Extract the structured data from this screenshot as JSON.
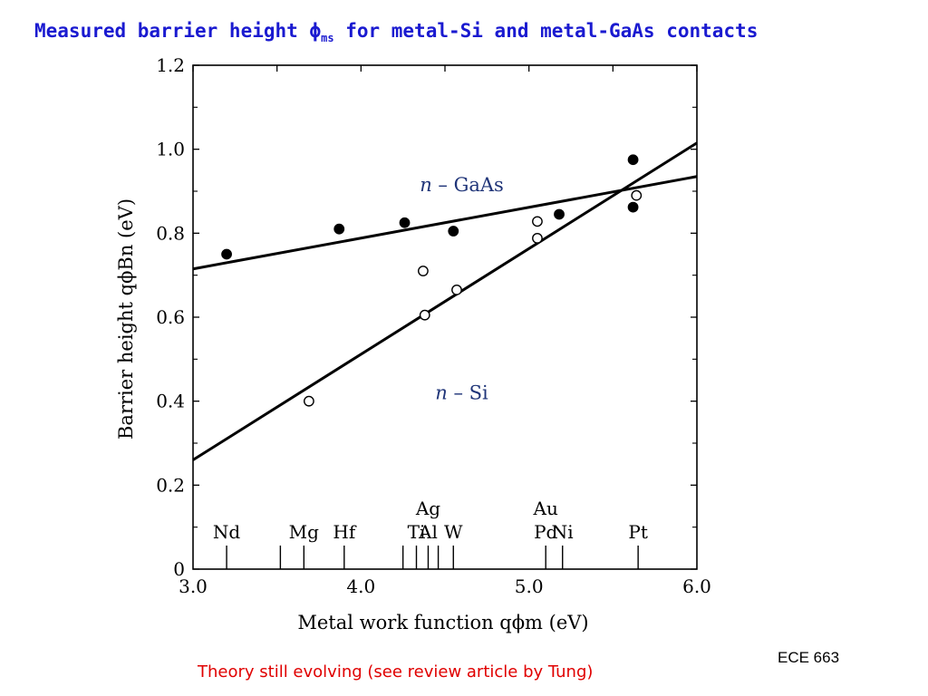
{
  "slide": {
    "title_main": "Measured barrier height ",
    "title_symbol": "ϕ",
    "title_sub": "ms",
    "title_rest": " for metal-Si and metal-GaAs contacts",
    "course": "ECE 663",
    "footer": "Theory still evolving (see review article by Tung)",
    "title_color": "#1a1ad0",
    "footer_color": "#e00000"
  },
  "chart_data": {
    "type": "scatter",
    "title": "",
    "xlabel": "Metal work function qϕm (eV)",
    "ylabel": "Barrier height qϕBn (eV)",
    "xlim": [
      3.0,
      6.0
    ],
    "ylim": [
      0,
      1.2
    ],
    "xticks": [
      3.0,
      3.5,
      4.0,
      4.5,
      5.0,
      5.5,
      6.0
    ],
    "xtick_labels": [
      "3.0",
      "",
      "4.0",
      "",
      "5.0",
      "",
      "6.0"
    ],
    "yticks": [
      0,
      0.2,
      0.4,
      0.6,
      0.8,
      1.0,
      1.2
    ],
    "ytick_labels": [
      "0",
      "0.2",
      "0.4",
      "0.6",
      "0.8",
      "1.0",
      "1.2"
    ],
    "grid": false,
    "series": [
      {
        "name": "n – GaAs",
        "marker": "filled-circle",
        "points": [
          [
            3.2,
            0.75
          ],
          [
            3.87,
            0.81
          ],
          [
            4.26,
            0.825
          ],
          [
            4.55,
            0.805
          ],
          [
            5.18,
            0.845
          ],
          [
            5.62,
            0.975
          ],
          [
            5.62,
            0.862
          ]
        ],
        "fit": [
          [
            3.0,
            0.715
          ],
          [
            6.0,
            0.935
          ]
        ],
        "label_at": [
          4.6,
          0.9
        ]
      },
      {
        "name": "n – Si",
        "marker": "open-circle",
        "points": [
          [
            3.69,
            0.4
          ],
          [
            4.37,
            0.71
          ],
          [
            4.38,
            0.605
          ],
          [
            4.57,
            0.665
          ],
          [
            5.05,
            0.828
          ],
          [
            5.05,
            0.788
          ],
          [
            5.64,
            0.89
          ]
        ],
        "fit": [
          [
            3.0,
            0.26
          ],
          [
            6.0,
            1.015
          ]
        ],
        "label_at": [
          4.6,
          0.405
        ]
      }
    ],
    "metals": [
      {
        "top": "",
        "bottom": "Nd",
        "x": 3.2
      },
      {
        "top": "",
        "bottom": "Mg",
        "x": 3.66
      },
      {
        "top": "",
        "bottom": "Hf",
        "x": 3.9
      },
      {
        "top": "",
        "bottom": "Ti",
        "x": 4.33
      },
      {
        "top": "Ag",
        "bottom": "Al",
        "x": 4.4
      },
      {
        "top": "",
        "bottom": "W",
        "x": 4.55
      },
      {
        "top": "Au",
        "bottom": "Pd",
        "x": 5.1
      },
      {
        "top": "",
        "bottom": "Ni",
        "x": 5.2
      },
      {
        "top": "",
        "bottom": "Pt",
        "x": 5.65
      }
    ],
    "metal_ticks": [
      3.2,
      3.52,
      3.66,
      3.9,
      4.25,
      4.33,
      4.4,
      4.46,
      4.55,
      5.1,
      5.2,
      5.65
    ]
  }
}
